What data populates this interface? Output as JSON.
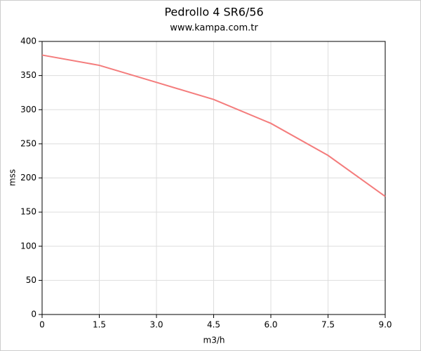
{
  "chart_data": {
    "type": "line",
    "title": "Pedrollo 4 SR6/56",
    "subtitle": "www.kampa.com.tr",
    "x_label": "m3/h",
    "y_label": "mss",
    "x": [
      0,
      1.5,
      3,
      4.5,
      6,
      7.5,
      9
    ],
    "series": [
      {
        "name": "Pedrollo 4 SR6/56",
        "color": "#f47c7c",
        "values": [
          380,
          365,
          340,
          315,
          280,
          233,
          173
        ]
      }
    ],
    "xlim": [
      0,
      9
    ],
    "xticks": [
      0,
      1.5,
      {
        "value": 3,
        "label": "3.0"
      },
      4.5,
      {
        "value": 6,
        "label": "6.0"
      },
      7.5,
      {
        "value": 9,
        "label": "9.0"
      }
    ],
    "ylim": [
      0,
      400
    ],
    "yticks": [
      0,
      50,
      100,
      150,
      200,
      250,
      300,
      350,
      400
    ],
    "grid": true
  }
}
